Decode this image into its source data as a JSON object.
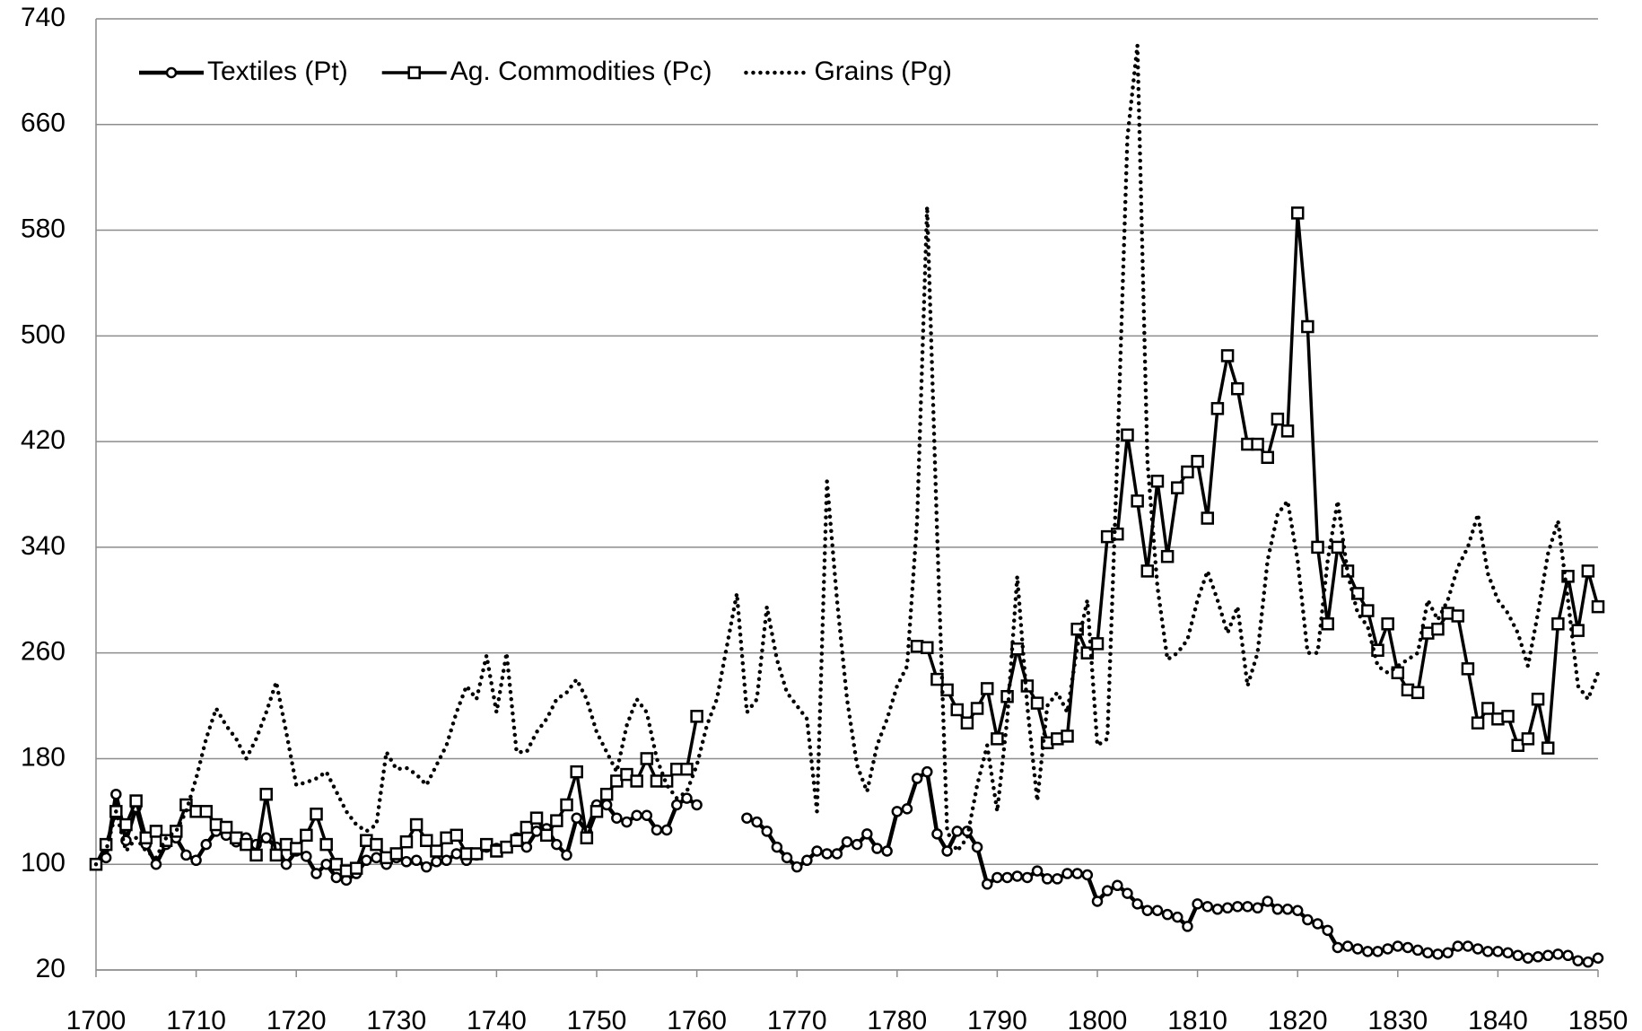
{
  "chart_data": {
    "type": "line",
    "x": [
      1700,
      1701,
      1702,
      1703,
      1704,
      1705,
      1706,
      1707,
      1708,
      1709,
      1710,
      1711,
      1712,
      1713,
      1714,
      1715,
      1716,
      1717,
      1718,
      1719,
      1720,
      1721,
      1722,
      1723,
      1724,
      1725,
      1726,
      1727,
      1728,
      1729,
      1730,
      1731,
      1732,
      1733,
      1734,
      1735,
      1736,
      1737,
      1738,
      1739,
      1740,
      1741,
      1742,
      1743,
      1744,
      1745,
      1746,
      1747,
      1748,
      1749,
      1750,
      1751,
      1752,
      1753,
      1754,
      1755,
      1756,
      1757,
      1758,
      1759,
      1760,
      1761,
      1762,
      1763,
      1764,
      1765,
      1766,
      1767,
      1768,
      1769,
      1770,
      1771,
      1772,
      1773,
      1774,
      1775,
      1776,
      1777,
      1778,
      1779,
      1780,
      1781,
      1782,
      1783,
      1784,
      1785,
      1786,
      1787,
      1788,
      1789,
      1790,
      1791,
      1792,
      1793,
      1794,
      1795,
      1796,
      1797,
      1798,
      1799,
      1800,
      1801,
      1802,
      1803,
      1804,
      1805,
      1806,
      1807,
      1808,
      1809,
      1810,
      1811,
      1812,
      1813,
      1814,
      1815,
      1816,
      1817,
      1818,
      1819,
      1820,
      1821,
      1822,
      1823,
      1824,
      1825,
      1826,
      1827,
      1828,
      1829,
      1830,
      1831,
      1832,
      1833,
      1834,
      1835,
      1836,
      1837,
      1838,
      1839,
      1840,
      1841,
      1842,
      1843,
      1844,
      1845,
      1846,
      1847,
      1848,
      1849,
      1850
    ],
    "series": [
      {
        "name": "Textiles (Pt)",
        "color": "#000000",
        "marker": "circle",
        "dash": "solid",
        "values": [
          100,
          105,
          153,
          118,
          143,
          115,
          100,
          115,
          120,
          107,
          103,
          115,
          125,
          122,
          117,
          120,
          115,
          120,
          113,
          100,
          110,
          106,
          93,
          100,
          90,
          88,
          93,
          103,
          105,
          100,
          105,
          102,
          103,
          98,
          102,
          103,
          108,
          103,
          107,
          113,
          112,
          113,
          120,
          113,
          125,
          127,
          115,
          107,
          135,
          125,
          145,
          145,
          135,
          132,
          137,
          137,
          126,
          126,
          145,
          150,
          145,
          null,
          null,
          null,
          null,
          135,
          132,
          125,
          113,
          105,
          98,
          103,
          110,
          108,
          108,
          117,
          115,
          123,
          112,
          110,
          140,
          142,
          165,
          170,
          123,
          110,
          125,
          125,
          113,
          85,
          90,
          90,
          91,
          90,
          95,
          89,
          89,
          93,
          93,
          92,
          72,
          80,
          84,
          78,
          70,
          65,
          65,
          62,
          60,
          53,
          70,
          68,
          66,
          67,
          68,
          68,
          67,
          72,
          66,
          66,
          65,
          58,
          55,
          50,
          37,
          38,
          36,
          34,
          34,
          36,
          38,
          37,
          35,
          33,
          32,
          33,
          38,
          38,
          36,
          34,
          34,
          33,
          31,
          29,
          30,
          31,
          32,
          31,
          27,
          26,
          29
        ]
      },
      {
        "name": "Ag. Commodities (Pc)",
        "color": "#000000",
        "marker": "square",
        "dash": "solid",
        "values": [
          100,
          115,
          140,
          130,
          148,
          120,
          125,
          118,
          125,
          145,
          140,
          140,
          130,
          128,
          120,
          115,
          107,
          153,
          107,
          115,
          112,
          122,
          138,
          115,
          100,
          95,
          97,
          118,
          115,
          105,
          108,
          117,
          130,
          118,
          110,
          120,
          122,
          108,
          108,
          115,
          110,
          113,
          118,
          128,
          135,
          122,
          133,
          145,
          170,
          120,
          140,
          153,
          163,
          168,
          163,
          180,
          163,
          163,
          172,
          172,
          212,
          null,
          null,
          null,
          null,
          null,
          null,
          null,
          null,
          null,
          null,
          null,
          null,
          null,
          null,
          null,
          null,
          null,
          null,
          null,
          null,
          null,
          265,
          264,
          240,
          232,
          217,
          207,
          218,
          233,
          195,
          227,
          263,
          235,
          222,
          192,
          195,
          197,
          278,
          260,
          267,
          348,
          350,
          425,
          375,
          322,
          390,
          333,
          385,
          397,
          405,
          362,
          445,
          485,
          460,
          418,
          418,
          408,
          437,
          428,
          593,
          507,
          340,
          282,
          340,
          322,
          305,
          292,
          262,
          282,
          245,
          232,
          230,
          275,
          278,
          290,
          288,
          248,
          207,
          218,
          210,
          212,
          190,
          195,
          225,
          188,
          282,
          318,
          277,
          322,
          295
        ]
      },
      {
        "name": "Grains (Pg)",
        "color": "#000000",
        "marker": null,
        "dash": "dotted",
        "values": [
          100,
          110,
          140,
          110,
          120,
          110,
          105,
          120,
          125,
          140,
          165,
          195,
          218,
          205,
          195,
          180,
          195,
          215,
          238,
          200,
          160,
          162,
          165,
          170,
          155,
          140,
          130,
          125,
          130,
          185,
          172,
          173,
          168,
          160,
          175,
          190,
          215,
          235,
          225,
          258,
          215,
          260,
          185,
          185,
          200,
          210,
          225,
          230,
          240,
          225,
          200,
          185,
          170,
          205,
          225,
          215,
          180,
          160,
          150,
          155,
          175,
          205,
          225,
          265,
          305,
          215,
          225,
          295,
          255,
          230,
          220,
          210,
          140,
          390,
          300,
          225,
          175,
          155,
          190,
          210,
          235,
          250,
          360,
          598,
          350,
          125,
          110,
          120,
          160,
          190,
          140,
          210,
          318,
          220,
          148,
          220,
          230,
          215,
          265,
          300,
          190,
          195,
          410,
          650,
          720,
          405,
          310,
          255,
          260,
          270,
          300,
          322,
          300,
          275,
          295,
          235,
          260,
          330,
          365,
          375,
          330,
          260,
          260,
          330,
          375,
          320,
          290,
          280,
          250,
          245,
          250,
          255,
          260,
          300,
          285,
          300,
          325,
          340,
          365,
          320,
          300,
          290,
          275,
          250,
          290,
          335,
          360,
          300,
          235,
          225,
          245
        ]
      }
    ],
    "xlim": [
      1700,
      1850
    ],
    "xticks": [
      1700,
      1710,
      1720,
      1730,
      1740,
      1750,
      1760,
      1770,
      1780,
      1790,
      1800,
      1810,
      1820,
      1830,
      1840,
      1850
    ],
    "ylim": [
      20,
      740
    ],
    "yticks": [
      20,
      100,
      180,
      260,
      340,
      420,
      500,
      580,
      660,
      740
    ],
    "grid": true,
    "legend": "upper left"
  }
}
